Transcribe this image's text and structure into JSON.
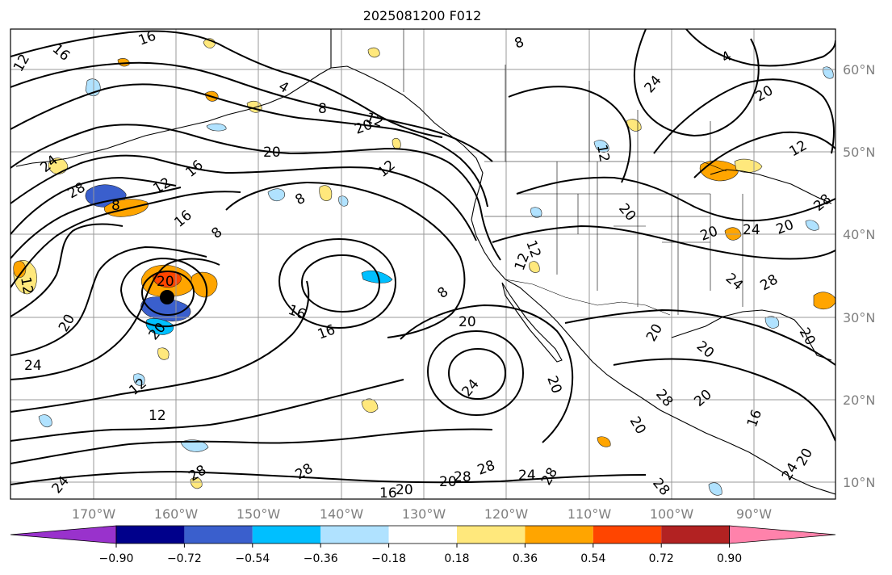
{
  "title": "2025081200 F012",
  "map": {
    "lat_labels": [
      "60°N",
      "50°N",
      "40°N",
      "30°N",
      "20°N",
      "10°N"
    ],
    "lon_labels": [
      "170°W",
      "160°W",
      "150°W",
      "140°W",
      "130°W",
      "120°W",
      "110°W",
      "100°W",
      "90°W"
    ]
  },
  "contour_labels": [
    "16",
    "16",
    "12",
    "4",
    "8",
    "12",
    "8",
    "20",
    "20",
    "4",
    "24",
    "20",
    "12",
    "24",
    "28",
    "8",
    "12",
    "16",
    "12",
    "16",
    "8",
    "8",
    "20",
    "16",
    "16",
    "12",
    "20",
    "20",
    "24",
    "12",
    "12",
    "28",
    "20",
    "24",
    "28",
    "24",
    "28",
    "28",
    "20",
    "16",
    "8",
    "20",
    "24",
    "20",
    "12",
    "12",
    "20",
    "20",
    "24",
    "28",
    "24",
    "20",
    "28",
    "20",
    "28",
    "20",
    "20",
    "20",
    "28",
    "12",
    "20",
    "24",
    "20",
    "16",
    "28"
  ],
  "colorbar": {
    "ticks": [
      "−0.90",
      "−0.72",
      "−0.54",
      "−0.36",
      "−0.18",
      "0.18",
      "0.36",
      "0.54",
      "0.72",
      "0.90"
    ],
    "colors": [
      "#9932cc",
      "#00008b",
      "#3a5fcd",
      "#00bfff",
      "#b0e2ff",
      "#ffffff",
      "#ffe87c",
      "#ffa500",
      "#ff4500",
      "#b22222",
      "#ff82ab"
    ]
  }
}
